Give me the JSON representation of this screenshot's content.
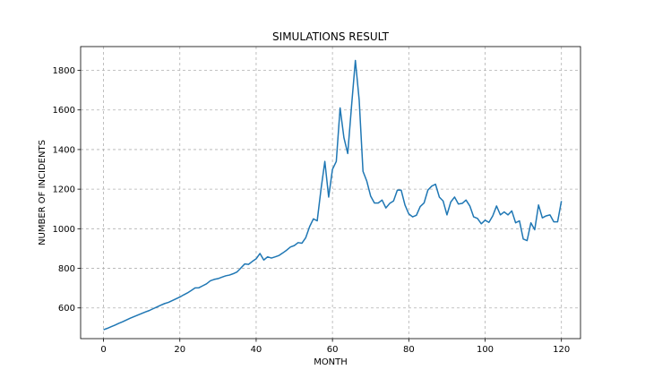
{
  "chart_data": {
    "type": "line",
    "title": "SIMULATIONS RESULT",
    "xlabel": "MONTH",
    "ylabel": "NUMBER OF INCIDENTS",
    "xlim": [
      -6,
      125
    ],
    "ylim": [
      445,
      1920
    ],
    "xticks": [
      0,
      20,
      40,
      60,
      80,
      100,
      120
    ],
    "yticks": [
      600,
      800,
      1000,
      1200,
      1400,
      1600,
      1800
    ],
    "grid": true,
    "line_color": "#1f77b4",
    "series": [
      {
        "values": [
          490,
          497,
          505,
          513,
          522,
          530,
          539,
          548,
          556,
          564,
          572,
          580,
          587,
          596,
          605,
          614,
          622,
          628,
          637,
          646,
          655,
          666,
          676,
          688,
          701,
          702,
          712,
          722,
          737,
          744,
          748,
          755,
          762,
          766,
          773,
          782,
          802,
          822,
          820,
          835,
          848,
          875,
          842,
          858,
          852,
          858,
          865,
          878,
          892,
          908,
          915,
          930,
          927,
          955,
          1010,
          1050,
          1040,
          1200,
          1340,
          1160,
          1300,
          1340,
          1610,
          1460,
          1380,
          1620,
          1850,
          1650,
          1290,
          1240,
          1165,
          1130,
          1130,
          1145,
          1105,
          1128,
          1140,
          1195,
          1195,
          1120,
          1075,
          1060,
          1068,
          1112,
          1130,
          1195,
          1215,
          1225,
          1160,
          1140,
          1070,
          1135,
          1160,
          1125,
          1128,
          1145,
          1115,
          1060,
          1052,
          1025,
          1043,
          1032,
          1065,
          1115,
          1070,
          1085,
          1070,
          1090,
          1030,
          1040,
          948,
          940,
          1030,
          995,
          1120,
          1055,
          1065,
          1070,
          1035,
          1035,
          1140
        ]
      }
    ]
  }
}
